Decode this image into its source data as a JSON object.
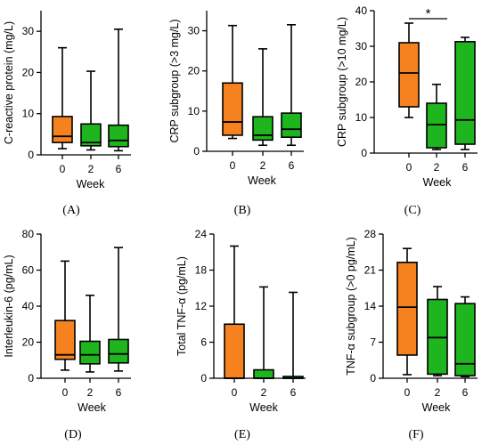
{
  "colors": {
    "week0": "#f5821f",
    "week2": "#1fb51f",
    "week6": "#1fb51f",
    "stroke": "#000000"
  },
  "chart_data": [
    {
      "type": "box",
      "panel_label": "(A)",
      "ylabel": "C-reactive protein (mg/L)",
      "xlabel": "Week",
      "ylim": [
        0,
        35
      ],
      "yticks": [
        0,
        10,
        20,
        30
      ],
      "categories": [
        "0",
        "2",
        "6"
      ],
      "boxes": [
        {
          "min": 1.5,
          "q1": 3.0,
          "median": 4.5,
          "q3": 9.3,
          "max": 26.0
        },
        {
          "min": 1.2,
          "q1": 2.2,
          "median": 3.0,
          "q3": 7.5,
          "max": 20.3
        },
        {
          "min": 1.0,
          "q1": 2.0,
          "median": 3.5,
          "q3": 7.2,
          "max": 30.5
        }
      ],
      "annotation": ""
    },
    {
      "type": "box",
      "panel_label": "(B)",
      "ylabel": "CRP subgroup (>3 mg/L)",
      "xlabel": "Week",
      "ylim": [
        0,
        35
      ],
      "yticks": [
        0,
        10,
        20,
        30
      ],
      "categories": [
        "0",
        "2",
        "6"
      ],
      "boxes": [
        {
          "min": 3.2,
          "q1": 4.0,
          "median": 7.3,
          "q3": 17.0,
          "max": 31.3
        },
        {
          "min": 1.5,
          "q1": 2.8,
          "median": 4.0,
          "q3": 8.6,
          "max": 25.5
        },
        {
          "min": 1.5,
          "q1": 3.5,
          "median": 5.5,
          "q3": 9.5,
          "max": 31.5
        }
      ],
      "annotation": ""
    },
    {
      "type": "box",
      "panel_label": "(C)",
      "ylabel": "CRP subgroup (>10 mg/L)",
      "xlabel": "Week",
      "ylim": [
        0,
        40
      ],
      "yticks": [
        0,
        10,
        20,
        30,
        40
      ],
      "categories": [
        "0",
        "2",
        "6"
      ],
      "boxes": [
        {
          "min": 10.0,
          "q1": 13.0,
          "median": 22.5,
          "q3": 31.0,
          "max": 36.5
        },
        {
          "min": 1.0,
          "q1": 1.5,
          "median": 8.0,
          "q3": 14.0,
          "max": 19.3
        },
        {
          "min": 1.0,
          "q1": 2.5,
          "median": 9.3,
          "q3": 31.3,
          "max": 32.5
        }
      ],
      "annotation": "*"
    },
    {
      "type": "box",
      "panel_label": "(D)",
      "ylabel": "Interleukin-6 (pg/mL)",
      "xlabel": "Week",
      "ylim": [
        0,
        80
      ],
      "yticks": [
        0,
        20,
        40,
        60,
        80
      ],
      "categories": [
        "0",
        "2",
        "6"
      ],
      "boxes": [
        {
          "min": 4.5,
          "q1": 10.5,
          "median": 13.0,
          "q3": 32.0,
          "max": 65.0
        },
        {
          "min": 3.5,
          "q1": 8.0,
          "median": 13.0,
          "q3": 20.5,
          "max": 46.0
        },
        {
          "min": 4.0,
          "q1": 8.5,
          "median": 13.5,
          "q3": 21.5,
          "max": 72.5
        }
      ],
      "annotation": ""
    },
    {
      "type": "box",
      "panel_label": "(E)",
      "ylabel": "Total TNF-α (pg/mL)",
      "xlabel": "Week",
      "ylim": [
        0,
        24
      ],
      "yticks": [
        0,
        6,
        12,
        18,
        24
      ],
      "categories": [
        "0",
        "2",
        "6"
      ],
      "boxes": [
        {
          "min": 0,
          "q1": 0,
          "median": 0,
          "q3": 9.0,
          "max": 22.0
        },
        {
          "min": 0,
          "q1": 0,
          "median": 0,
          "q3": 1.4,
          "max": 15.2
        },
        {
          "min": 0,
          "q1": 0,
          "median": 0,
          "q3": 0.3,
          "max": 14.3
        }
      ],
      "annotation": ""
    },
    {
      "type": "box",
      "panel_label": "(F)",
      "ylabel": "TNF-α subgroup (>0 pg/mL)",
      "xlabel": "Week",
      "ylim": [
        0,
        28
      ],
      "yticks": [
        0,
        7,
        14,
        21,
        28
      ],
      "categories": [
        "0",
        "2",
        "6"
      ],
      "boxes": [
        {
          "min": 0.7,
          "q1": 4.5,
          "median": 13.8,
          "q3": 22.5,
          "max": 25.2
        },
        {
          "min": 0.5,
          "q1": 0.8,
          "median": 7.9,
          "q3": 15.3,
          "max": 17.8
        },
        {
          "min": 0.3,
          "q1": 0.5,
          "median": 2.8,
          "q3": 14.5,
          "max": 15.8
        }
      ],
      "annotation": ""
    }
  ]
}
